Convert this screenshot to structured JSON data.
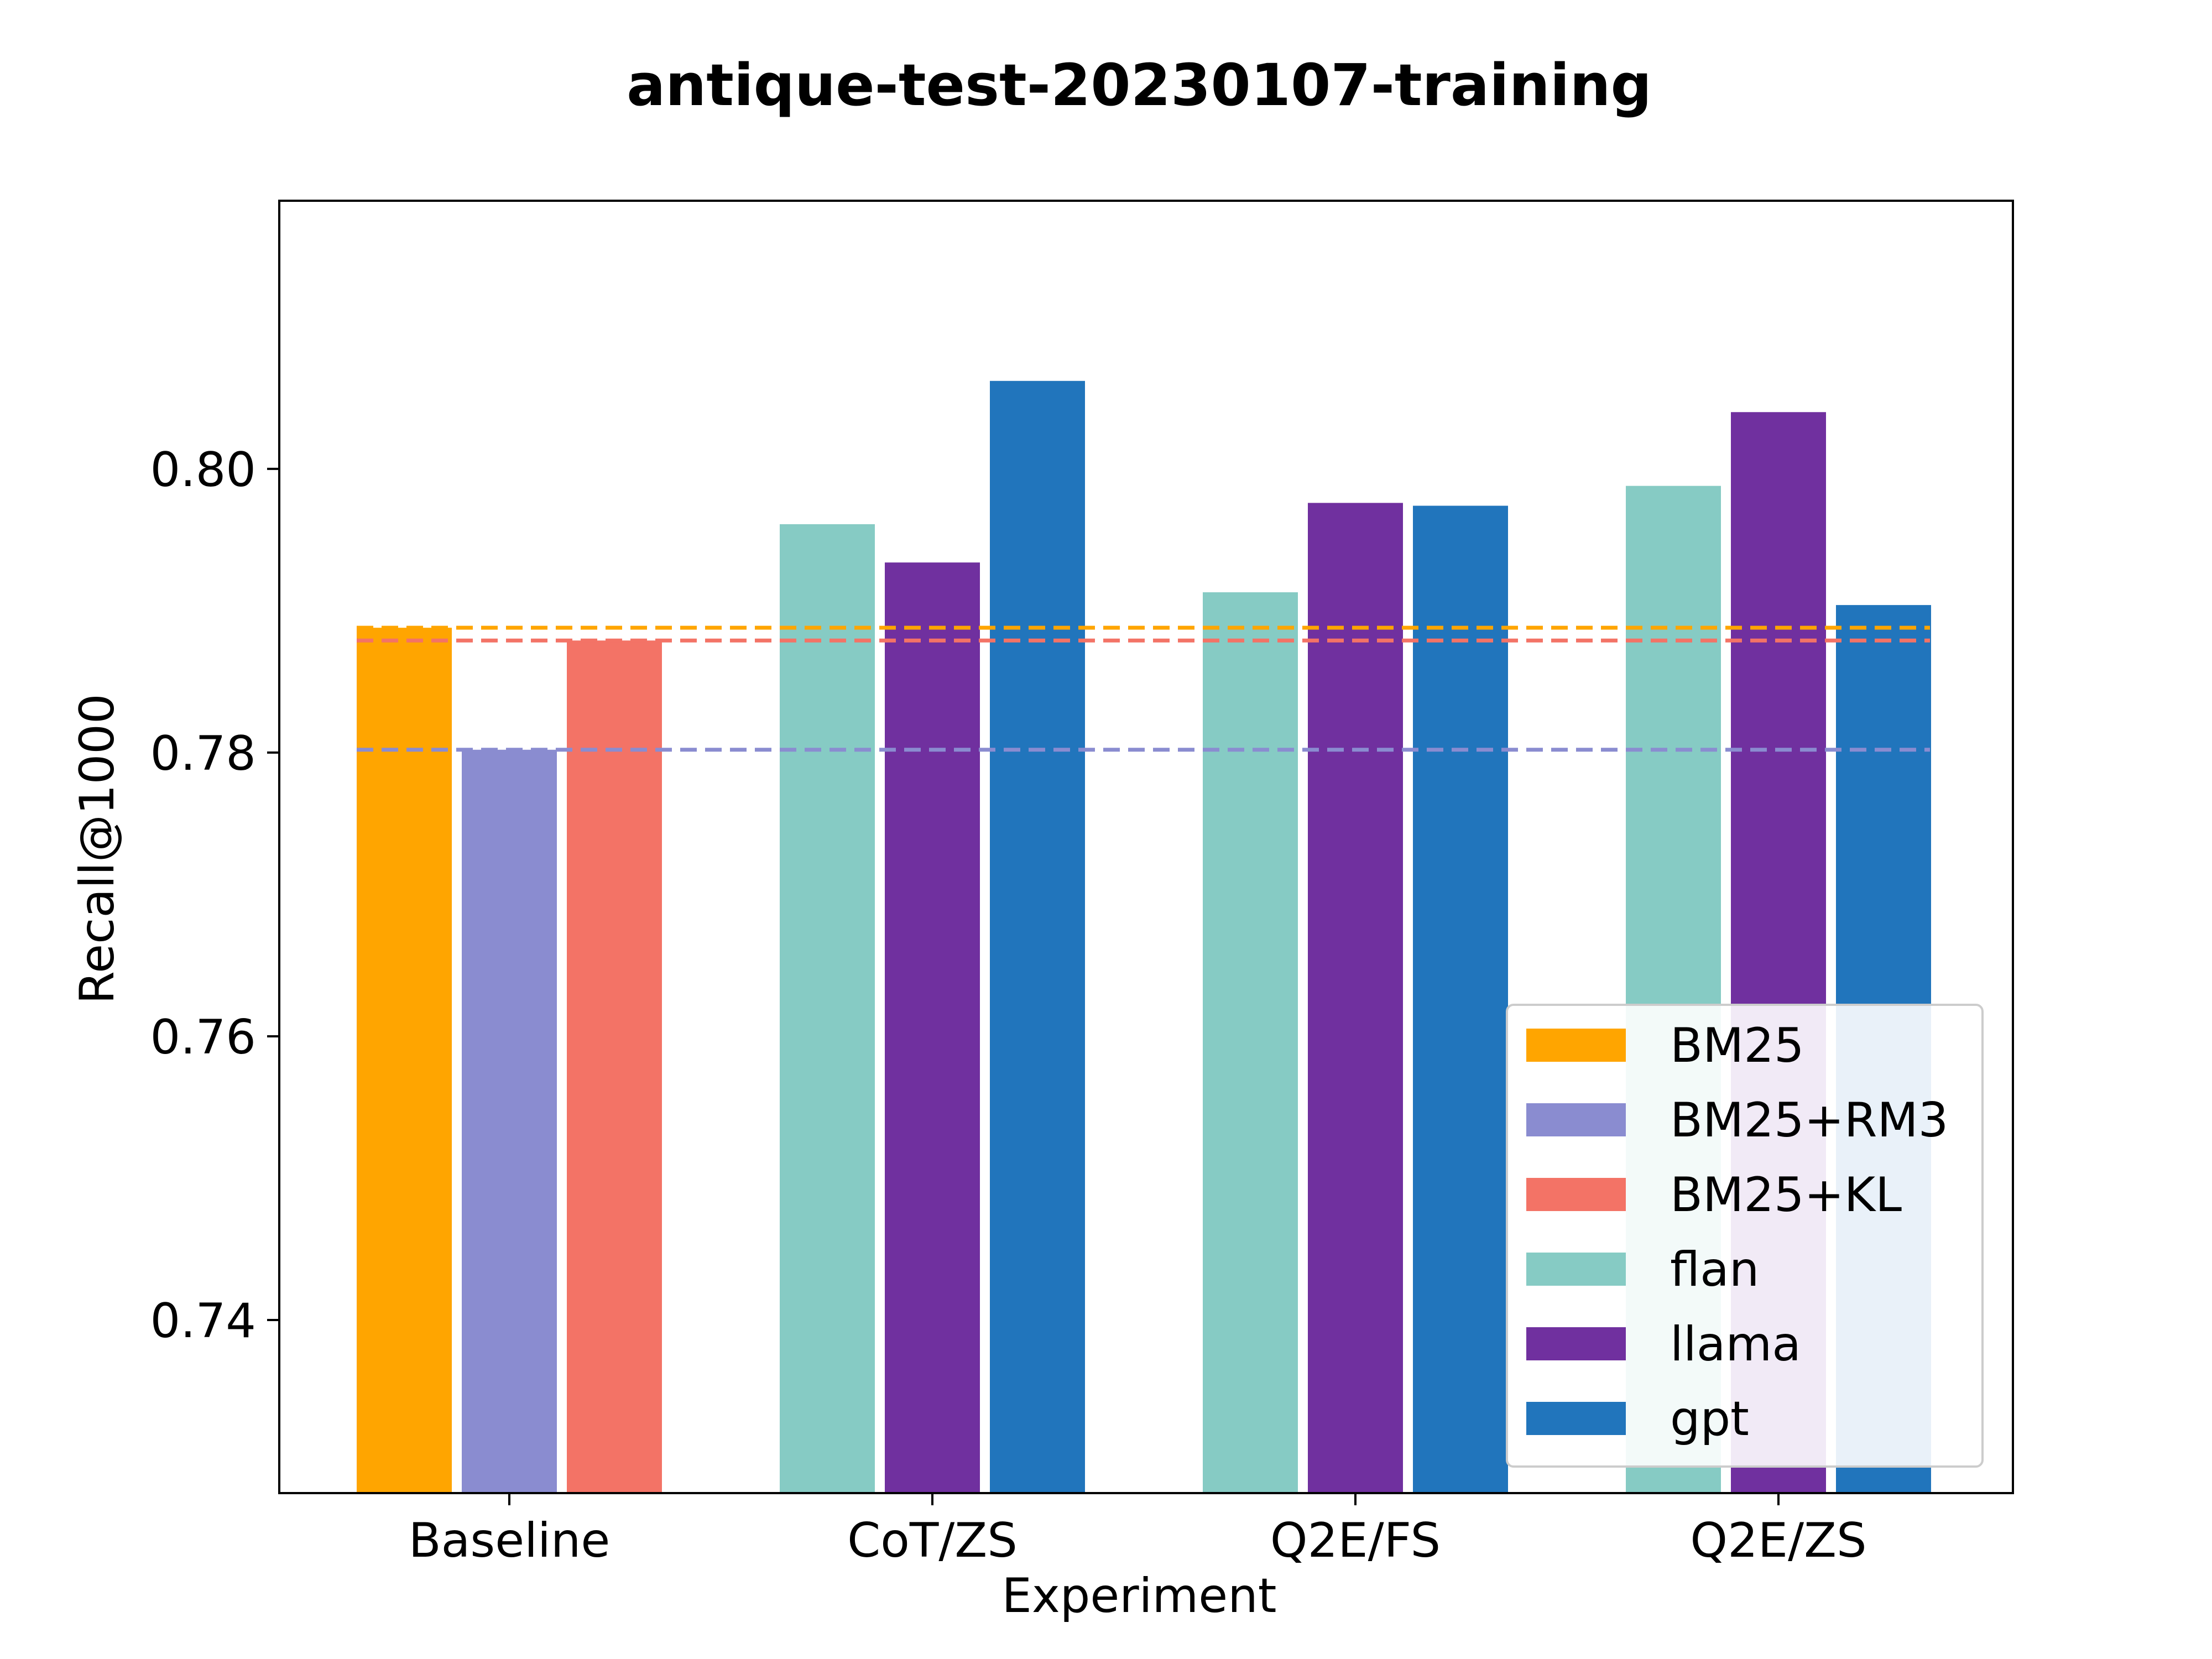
{
  "chart_data": {
    "type": "bar",
    "title": "antique-test-20230107-training",
    "xlabel": "Experiment",
    "ylabel": "Recall@1000",
    "ylim": [
      0.7278,
      0.8189
    ],
    "yticks": [
      0.74,
      0.76,
      0.78,
      0.8
    ],
    "ytick_labels": [
      "0.74",
      "0.76",
      "0.78",
      "0.80"
    ],
    "categories": [
      "Baseline",
      "CoT/ZS",
      "Q2E/FS",
      "Q2E/ZS"
    ],
    "series": [
      {
        "name": "BM25",
        "color": "#FFA500",
        "values": [
          0.7888,
          null,
          null,
          null
        ]
      },
      {
        "name": "BM25+RM3",
        "color": "#8A8CD0",
        "values": [
          0.7802,
          null,
          null,
          null
        ]
      },
      {
        "name": "BM25+KL",
        "color": "#F37366",
        "values": [
          0.7879,
          null,
          null,
          null
        ]
      },
      {
        "name": "flan",
        "color": "#86CBC4",
        "values": [
          null,
          0.7961,
          0.7913,
          0.7988
        ]
      },
      {
        "name": "llama",
        "color": "#70309F",
        "values": [
          null,
          0.7934,
          0.7976,
          0.804
        ]
      },
      {
        "name": "gpt",
        "color": "#2175BC",
        "values": [
          null,
          0.8062,
          0.7974,
          0.7904
        ]
      }
    ],
    "reference_lines": [
      {
        "series": "BM25",
        "value": 0.7888,
        "style": "dashed"
      },
      {
        "series": "BM25+RM3",
        "value": 0.7802,
        "style": "dashed"
      },
      {
        "series": "BM25+KL",
        "value": 0.7879,
        "style": "dashed"
      }
    ],
    "legend_position": "lower-right",
    "grid": false
  }
}
